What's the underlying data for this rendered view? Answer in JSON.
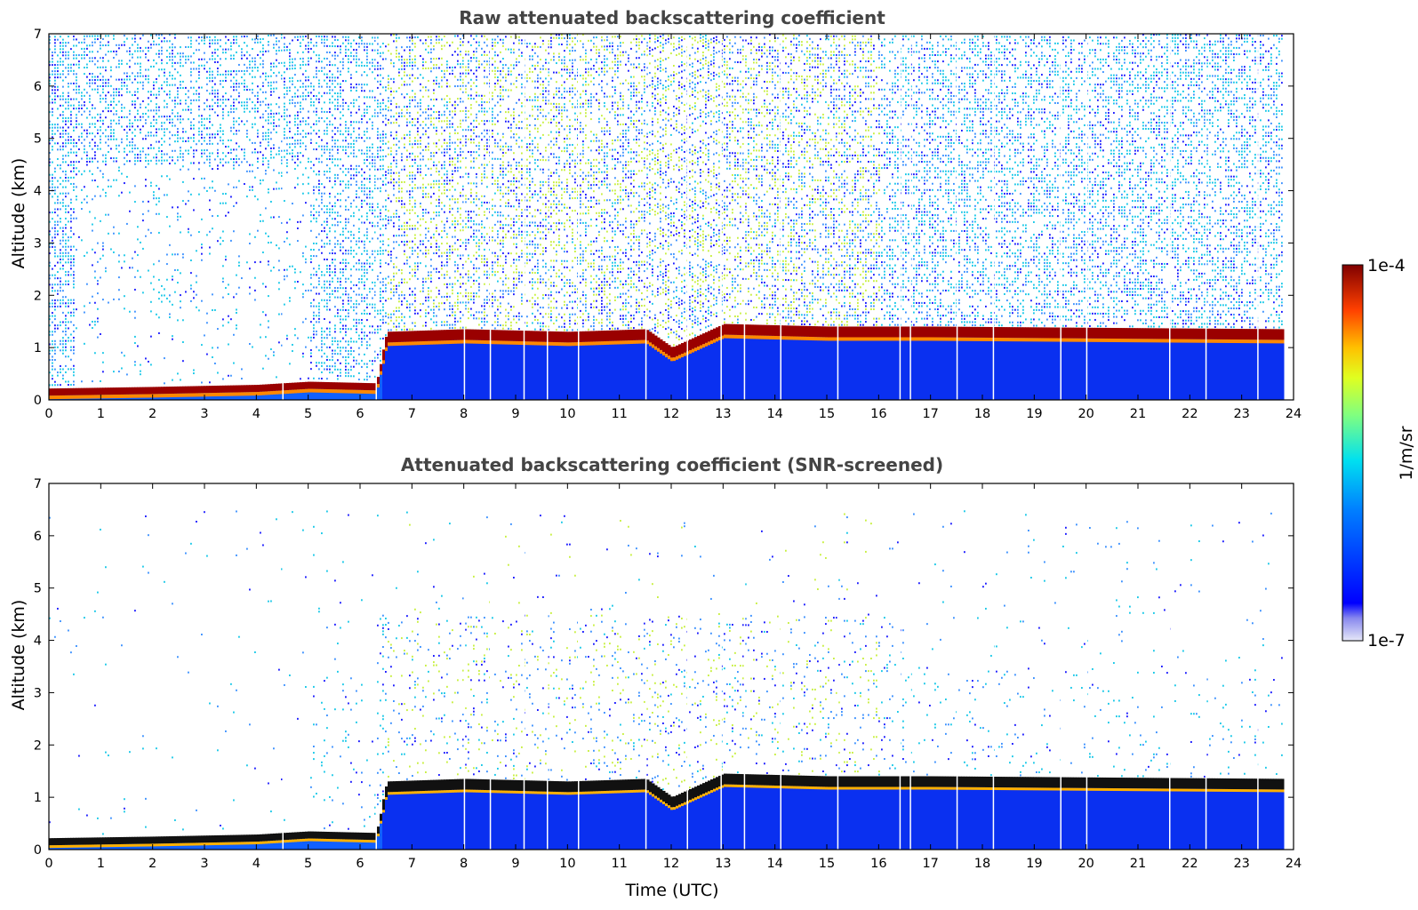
{
  "chart_data": [
    {
      "type": "heatmap",
      "title": "Raw attenuated backscattering coefficient",
      "xlabel": "",
      "ylabel": "Altitude (km)",
      "xlim": [
        0,
        24
      ],
      "ylim": [
        0,
        7
      ],
      "xticks": [
        "0",
        "1",
        "2",
        "3",
        "4",
        "5",
        "6",
        "7",
        "8",
        "9",
        "10",
        "11",
        "12",
        "13",
        "14",
        "15",
        "16",
        "17",
        "18",
        "19",
        "20",
        "21",
        "22",
        "23",
        "24"
      ],
      "yticks": [
        "0",
        "1",
        "2",
        "3",
        "4",
        "5",
        "6",
        "7"
      ],
      "variant": "raw",
      "layer_top_km": [
        {
          "t": 0,
          "alt": 0.15
        },
        {
          "t": 2,
          "alt": 0.18
        },
        {
          "t": 4,
          "alt": 0.22
        },
        {
          "t": 5,
          "alt": 0.28
        },
        {
          "t": 6.3,
          "alt": 0.25
        },
        {
          "t": 6.5,
          "alt": 1.2
        },
        {
          "t": 8,
          "alt": 1.25
        },
        {
          "t": 10,
          "alt": 1.2
        },
        {
          "t": 11.5,
          "alt": 1.25
        },
        {
          "t": 12,
          "alt": 0.9
        },
        {
          "t": 13,
          "alt": 1.35
        },
        {
          "t": 15,
          "alt": 1.3
        },
        {
          "t": 17,
          "alt": 1.3
        },
        {
          "t": 23.8,
          "alt": 1.25
        }
      ]
    },
    {
      "type": "heatmap",
      "title": "Attenuated backscattering coefficient (SNR-screened)",
      "xlabel": "Time (UTC)",
      "ylabel": "Altitude (km)",
      "xlim": [
        0,
        24
      ],
      "ylim": [
        0,
        7
      ],
      "xticks": [
        "0",
        "1",
        "2",
        "3",
        "4",
        "5",
        "6",
        "7",
        "8",
        "9",
        "10",
        "11",
        "12",
        "13",
        "14",
        "15",
        "16",
        "17",
        "18",
        "19",
        "20",
        "21",
        "22",
        "23",
        "24"
      ],
      "yticks": [
        "0",
        "1",
        "2",
        "3",
        "4",
        "5",
        "6",
        "7"
      ],
      "variant": "screened",
      "layer_top_km": [
        {
          "t": 0,
          "alt": 0.15
        },
        {
          "t": 2,
          "alt": 0.18
        },
        {
          "t": 4,
          "alt": 0.22
        },
        {
          "t": 5,
          "alt": 0.28
        },
        {
          "t": 6.3,
          "alt": 0.25
        },
        {
          "t": 6.5,
          "alt": 1.2
        },
        {
          "t": 8,
          "alt": 1.25
        },
        {
          "t": 10,
          "alt": 1.2
        },
        {
          "t": 11.5,
          "alt": 1.25
        },
        {
          "t": 12,
          "alt": 0.9
        },
        {
          "t": 13,
          "alt": 1.35
        },
        {
          "t": 15,
          "alt": 1.3
        },
        {
          "t": 17,
          "alt": 1.3
        },
        {
          "t": 23.8,
          "alt": 1.25
        }
      ]
    }
  ],
  "colorbar": {
    "label": "1/m/sr",
    "min_label": "1e-7",
    "max_label": "1e-4",
    "scale": "log",
    "colormap": "jet"
  }
}
